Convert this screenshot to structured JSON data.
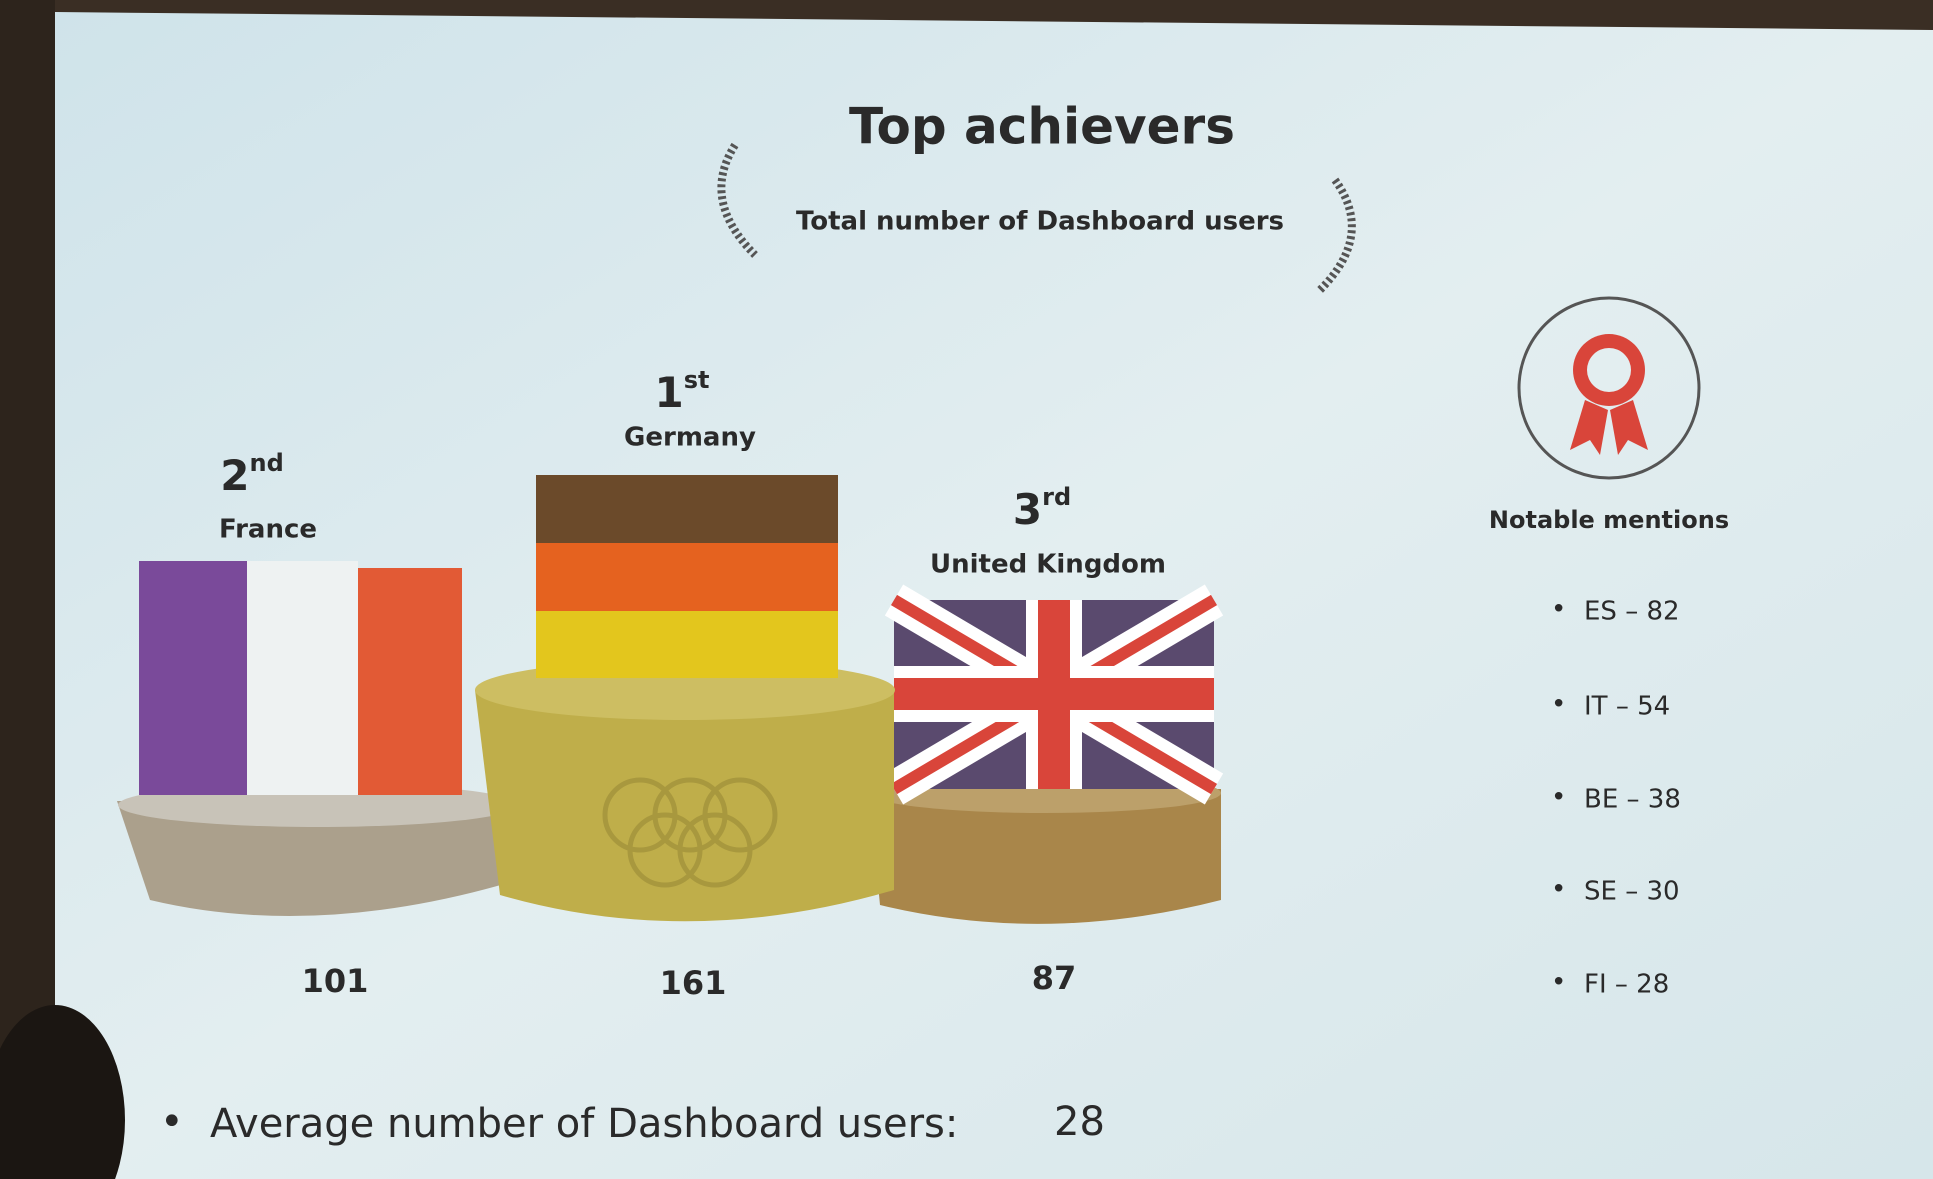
{
  "header": {
    "title": "Top achievers",
    "subtitle": "Total number of Dashboard users"
  },
  "podium": [
    {
      "rank": "2",
      "rank_suffix": "nd",
      "country": "France",
      "value": "101"
    },
    {
      "rank": "1",
      "rank_suffix": "st",
      "country": "Germany",
      "value": "161"
    },
    {
      "rank": "3",
      "rank_suffix": "rd",
      "country": "United Kingdom",
      "value": "87"
    }
  ],
  "notable": {
    "heading": "Notable mentions",
    "items": [
      "ES – 82",
      "IT – 54",
      "BE – 38",
      "SE – 30",
      "FI – 28"
    ]
  },
  "average": {
    "label": "Average number of Dashboard users:",
    "value": "28"
  }
}
